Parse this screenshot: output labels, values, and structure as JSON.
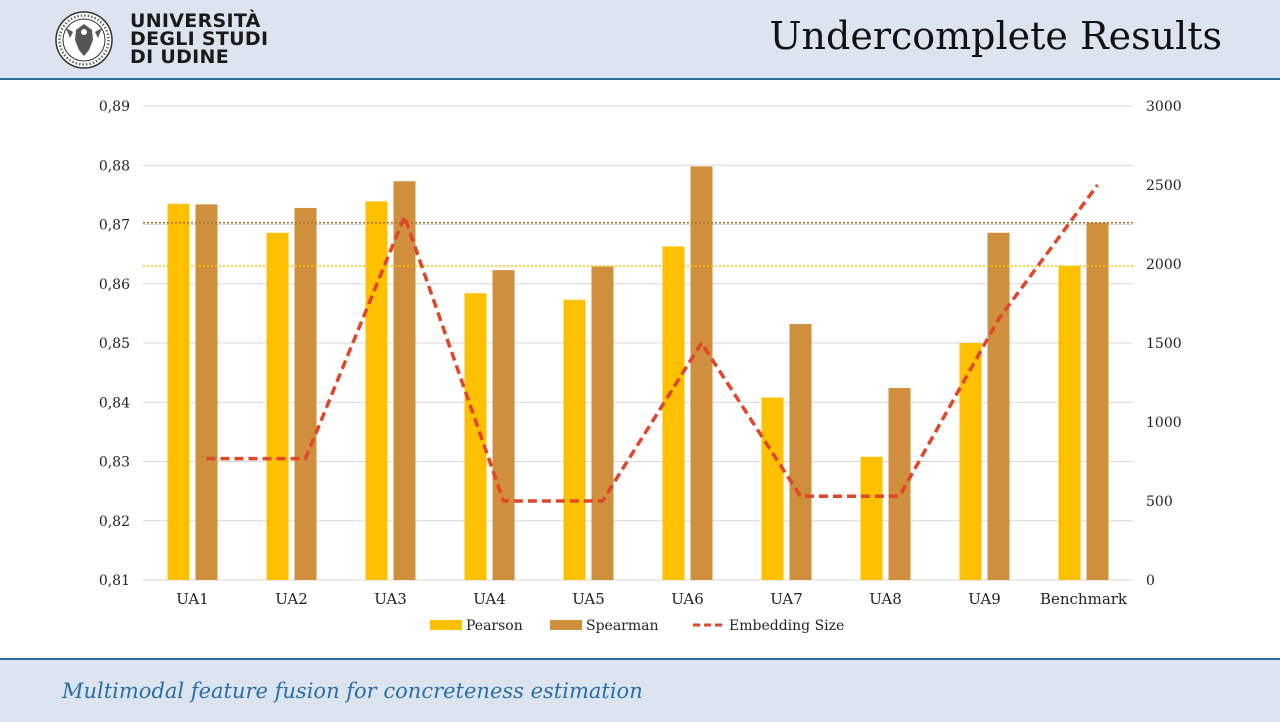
{
  "header": {
    "university_line1": "UNIVERSITÀ",
    "university_line2": "DEGLI STUDI",
    "university_line3": "DI UDINE",
    "title": "Undercomplete Results"
  },
  "footer": {
    "subtitle": "Multimodal feature fusion for concreteness estimation"
  },
  "colors": {
    "pearson": "#ffc000",
    "spearman": "#d08f3c",
    "embedding": "#e0472a",
    "header_bg": "#dce4f0",
    "footer_text": "#2a6ea4"
  },
  "chart_data": {
    "type": "bar",
    "categories": [
      "UA1",
      "UA2",
      "UA3",
      "UA4",
      "UA5",
      "UA6",
      "UA7",
      "UA8",
      "UA9",
      "Benchmark"
    ],
    "series": [
      {
        "name": "Pearson",
        "type": "bar",
        "axis": "left",
        "values": [
          0.8735,
          0.8686,
          0.8739,
          0.8584,
          0.8573,
          0.8663,
          0.8408,
          0.8308,
          0.85,
          0.863
        ]
      },
      {
        "name": "Spearman",
        "type": "bar",
        "axis": "left",
        "values": [
          0.8734,
          0.8728,
          0.8773,
          0.8623,
          0.8629,
          0.8798,
          0.8532,
          0.8424,
          0.8686,
          0.8703
        ]
      },
      {
        "name": "Embedding Size",
        "type": "line",
        "style": "dashed",
        "axis": "right",
        "values": [
          768,
          768,
          2300,
          500,
          500,
          1500,
          530,
          530,
          1650,
          2500
        ]
      }
    ],
    "reference_lines": [
      {
        "axis": "left",
        "value": 0.8703,
        "color": "#a0722a"
      },
      {
        "axis": "left",
        "value": 0.863,
        "color": "#ffc000"
      }
    ],
    "y_left": {
      "min": 0.81,
      "max": 0.89,
      "ticks": [
        "0,81",
        "0,82",
        "0,83",
        "0,84",
        "0,85",
        "0,86",
        "0,87",
        "0,88",
        "0,89"
      ]
    },
    "y_right": {
      "min": 0,
      "max": 3000,
      "ticks": [
        "0",
        "500",
        "1000",
        "1500",
        "2000",
        "2500",
        "3000"
      ]
    },
    "grid": true,
    "legend_position": "bottom"
  }
}
